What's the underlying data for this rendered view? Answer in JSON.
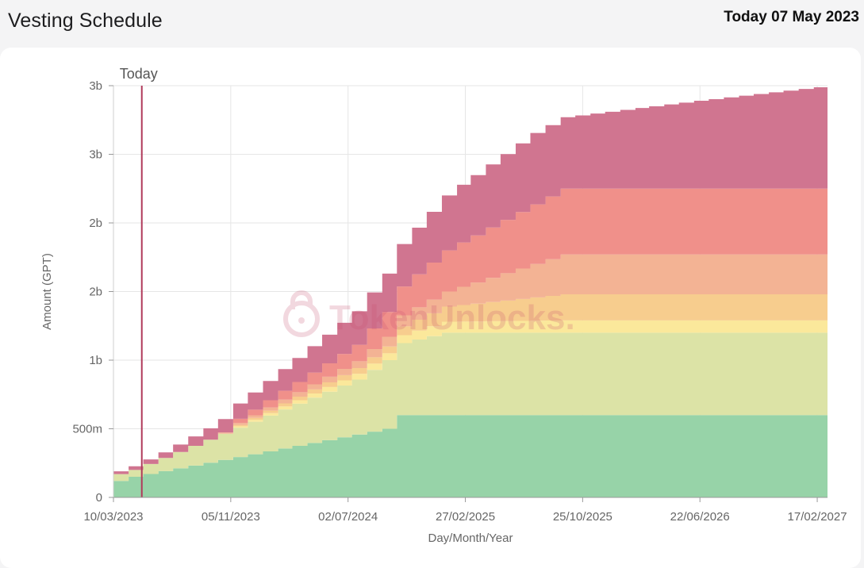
{
  "header": {
    "title": "Vesting Schedule",
    "today_label": "Today 07 May 2023"
  },
  "watermark": "TokenUnlocks.",
  "chart_data": {
    "type": "area",
    "stacked": true,
    "step": true,
    "xlabel": "Day/Month/Year",
    "ylabel": "Amount (GPT)",
    "x_start": "2023-03-10",
    "x_end": "2027-03-10",
    "x_ticks": [
      "10/03/2023",
      "05/11/2023",
      "02/07/2024",
      "27/02/2025",
      "25/10/2025",
      "22/06/2026",
      "17/02/2027"
    ],
    "y_ticks": [
      {
        "value": 0,
        "label": "0"
      },
      {
        "value": 500000000,
        "label": "500m"
      },
      {
        "value": 1000000000,
        "label": "1b"
      },
      {
        "value": 1500000000,
        "label": "2b"
      },
      {
        "value": 2000000000,
        "label": "2b"
      },
      {
        "value": 2500000000,
        "label": "3b"
      },
      {
        "value": 3000000000,
        "label": "3b"
      }
    ],
    "ylim": [
      0,
      3000000000
    ],
    "grid": true,
    "marker": {
      "label": "Today",
      "date": "2023-05-07",
      "color": "#b03a5b"
    },
    "series": [
      {
        "color": "#97d3a8",
        "points": [
          {
            "x": "2023-03-10",
            "y": 120000000
          },
          {
            "x": "2023-04-10",
            "y": 150000000
          },
          {
            "x": "2024-09-10",
            "y": 500000000
          },
          {
            "x": "2024-10-10",
            "y": 600000000
          },
          {
            "x": "2027-03-10",
            "y": 600000000
          }
        ]
      },
      {
        "color": "#dce3a6",
        "points": [
          {
            "x": "2023-03-10",
            "y": 50000000
          },
          {
            "x": "2023-04-10",
            "y": 50000000
          },
          {
            "x": "2024-07-10",
            "y": 400000000
          },
          {
            "x": "2024-09-10",
            "y": 500000000
          },
          {
            "x": "2025-01-10",
            "y": 600000000
          },
          {
            "x": "2027-03-10",
            "y": 600000000
          }
        ]
      },
      {
        "color": "#fbe89b",
        "points": [
          {
            "x": "2023-03-10",
            "y": 0
          },
          {
            "x": "2023-10-10",
            "y": 0
          },
          {
            "x": "2023-11-10",
            "y": 10000000
          },
          {
            "x": "2024-09-10",
            "y": 50000000
          },
          {
            "x": "2025-01-10",
            "y": 80000000
          },
          {
            "x": "2025-09-10",
            "y": 90000000
          },
          {
            "x": "2027-03-10",
            "y": 90000000
          }
        ]
      },
      {
        "color": "#f7cd8e",
        "points": [
          {
            "x": "2023-03-10",
            "y": 0
          },
          {
            "x": "2023-10-10",
            "y": 0
          },
          {
            "x": "2023-11-10",
            "y": 10000000
          },
          {
            "x": "2024-09-10",
            "y": 50000000
          },
          {
            "x": "2025-01-10",
            "y": 110000000
          },
          {
            "x": "2025-09-10",
            "y": 190000000
          },
          {
            "x": "2027-03-10",
            "y": 190000000
          }
        ]
      },
      {
        "color": "#f3b394",
        "points": [
          {
            "x": "2023-03-10",
            "y": 0
          },
          {
            "x": "2023-09-10",
            "y": 0
          },
          {
            "x": "2023-10-10",
            "y": 10000000
          },
          {
            "x": "2024-07-10",
            "y": 50000000
          },
          {
            "x": "2025-01-10",
            "y": 110000000
          },
          {
            "x": "2025-09-10",
            "y": 290000000
          },
          {
            "x": "2027-03-10",
            "y": 290000000
          }
        ]
      },
      {
        "color": "#f0908a",
        "points": [
          {
            "x": "2023-03-10",
            "y": 0
          },
          {
            "x": "2023-10-10",
            "y": 0
          },
          {
            "x": "2023-11-10",
            "y": 30000000
          },
          {
            "x": "2024-07-10",
            "y": 120000000
          },
          {
            "x": "2025-01-10",
            "y": 300000000
          },
          {
            "x": "2025-09-10",
            "y": 480000000
          },
          {
            "x": "2027-03-10",
            "y": 480000000
          }
        ]
      },
      {
        "color": "#d07590",
        "points": [
          {
            "x": "2023-03-10",
            "y": 20000000
          },
          {
            "x": "2023-06-10",
            "y": 40000000
          },
          {
            "x": "2024-01-10",
            "y": 140000000
          },
          {
            "x": "2024-09-10",
            "y": 280000000
          },
          {
            "x": "2025-01-10",
            "y": 400000000
          },
          {
            "x": "2025-07-10",
            "y": 520000000
          },
          {
            "x": "2025-09-10",
            "y": 520000000
          },
          {
            "x": "2026-06-10",
            "y": 640000000
          },
          {
            "x": "2027-03-10",
            "y": 750000000
          }
        ]
      }
    ]
  }
}
